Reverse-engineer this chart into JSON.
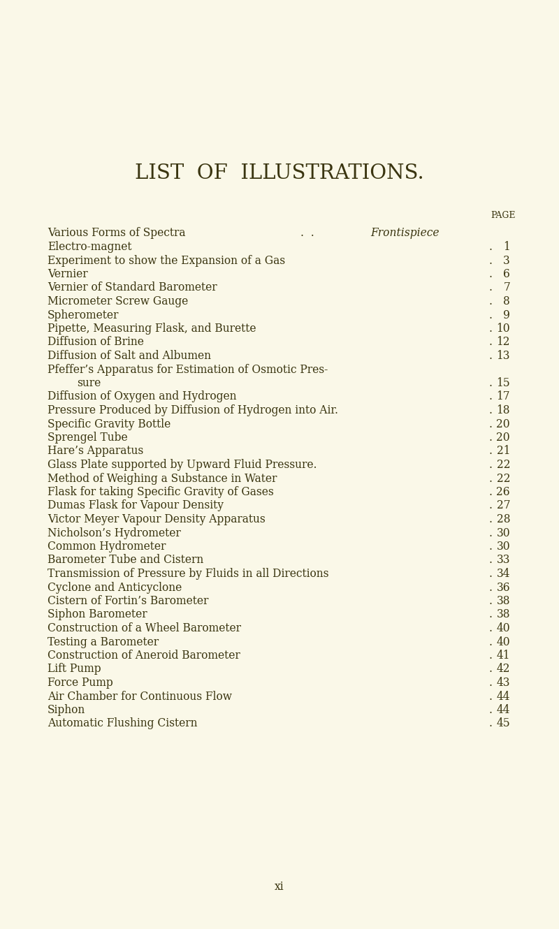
{
  "bg_color": "#faf8e8",
  "title": "LIST  OF  ILLUSTRATIONS.",
  "title_fontsize": 20,
  "text_color": "#3a3510",
  "entries": [
    {
      "text": "Various Forms of Spectra",
      "dots_text": " .  .  ",
      "page": "Frontispiece",
      "page_italic": true,
      "indent": false,
      "has_dots": false
    },
    {
      "text": "Electro-magnet",
      "dots_text": " . . . . . . . .",
      "page": "1",
      "page_italic": false,
      "indent": false,
      "has_dots": true
    },
    {
      "text": "Experiment to show the Expansion of a Gas",
      "dots_text": " . .",
      "page": "3",
      "page_italic": false,
      "indent": false,
      "has_dots": true
    },
    {
      "text": "Vernier",
      "dots_text": " . . . . . . . . .",
      "page": "6",
      "page_italic": false,
      "indent": false,
      "has_dots": true
    },
    {
      "text": "Vernier of Standard Barometer",
      "dots_text": " . . . . .",
      "page": "7",
      "page_italic": false,
      "indent": false,
      "has_dots": true
    },
    {
      "text": "Micrometer Screw Gauge",
      "dots_text": " . . . . . .",
      "page": "8",
      "page_italic": false,
      "indent": false,
      "has_dots": true
    },
    {
      "text": "Spherometer",
      "dots_text": " . . . . . . . .",
      "page": "9",
      "page_italic": false,
      "indent": false,
      "has_dots": true
    },
    {
      "text": "Pipette, Measuring Flask, and Burette",
      "dots_text": " . . .",
      "page": "10",
      "page_italic": false,
      "indent": false,
      "has_dots": true
    },
    {
      "text": "Diffusion of Brine",
      "dots_text": " . . . . . . .",
      "page": "12",
      "page_italic": false,
      "indent": false,
      "has_dots": true
    },
    {
      "text": "Diffusion of Salt and Albumen",
      "dots_text": " . . . . .",
      "page": "13",
      "page_italic": false,
      "indent": false,
      "has_dots": true
    },
    {
      "text": "Pfeffer’s Apparatus for Estimation of Osmotic Pres-",
      "dots_text": "",
      "page": "",
      "page_italic": false,
      "indent": false,
      "has_dots": false
    },
    {
      "text": "sure",
      "dots_text": " . . . . . . . . .",
      "page": "15",
      "page_italic": false,
      "indent": true,
      "has_dots": true
    },
    {
      "text": "Diffusion of Oxygen and Hydrogen",
      "dots_text": " . . . .",
      "page": "17",
      "page_italic": false,
      "indent": false,
      "has_dots": true
    },
    {
      "text": "Pressure Produced by Diffusion of Hydrogen into Air.",
      "dots_text": "",
      "page": "18",
      "page_italic": false,
      "indent": false,
      "has_dots": true
    },
    {
      "text": "Specific Gravity Bottle",
      "dots_text": " . . . . . .",
      "page": "20",
      "page_italic": false,
      "indent": false,
      "has_dots": true
    },
    {
      "text": "Sprengel Tube",
      "dots_text": " . . . . . . . .",
      "page": "20",
      "page_italic": false,
      "indent": false,
      "has_dots": true
    },
    {
      "text": "Hare’s Apparatus",
      "dots_text": " . . . . . . .",
      "page": "21",
      "page_italic": false,
      "indent": false,
      "has_dots": true
    },
    {
      "text": "Glass Plate supported by Upward Fluid Pressure.",
      "dots_text": " .",
      "page": "22",
      "page_italic": false,
      "indent": false,
      "has_dots": true
    },
    {
      "text": "Method of Weighing a Substance in Water",
      "dots_text": " . . .",
      "page": "22",
      "page_italic": false,
      "indent": false,
      "has_dots": true
    },
    {
      "text": "Flask for taking Specific Gravity of Gases",
      "dots_text": " . . .",
      "page": "26",
      "page_italic": false,
      "indent": false,
      "has_dots": true
    },
    {
      "text": "Dumas Flask for Vapour Density",
      "dots_text": " . . . .",
      "page": "27",
      "page_italic": false,
      "indent": false,
      "has_dots": true
    },
    {
      "text": "Victor Meyer Vapour Density Apparatus",
      "dots_text": " . . .",
      "page": "28",
      "page_italic": false,
      "indent": false,
      "has_dots": true
    },
    {
      "text": "Nicholson’s Hydrometer",
      "dots_text": " . . . . . .",
      "page": "30",
      "page_italic": false,
      "indent": false,
      "has_dots": true
    },
    {
      "text": "Common Hydrometer",
      "dots_text": " . . . . . .",
      "page": "30",
      "page_italic": false,
      "indent": false,
      "has_dots": true
    },
    {
      "text": "Barometer Tube and Cistern",
      "dots_text": " . . . . .",
      "page": "33",
      "page_italic": false,
      "indent": false,
      "has_dots": true
    },
    {
      "text": "Transmission of Pressure by Fluids in all Directions",
      "dots_text": " .",
      "page": "34",
      "page_italic": false,
      "indent": false,
      "has_dots": true
    },
    {
      "text": "Cyclone and Anticyclone",
      "dots_text": " . . . . . .",
      "page": "36",
      "page_italic": false,
      "indent": false,
      "has_dots": true
    },
    {
      "text": "Cistern of Fortin’s Barometer",
      "dots_text": " . . . . .",
      "page": "38",
      "page_italic": false,
      "indent": false,
      "has_dots": true
    },
    {
      "text": "Siphon Barometer",
      "dots_text": " . . . . . . .",
      "page": "38",
      "page_italic": false,
      "indent": false,
      "has_dots": true
    },
    {
      "text": "Construction of a Wheel Barometer",
      "dots_text": " . . . .",
      "page": "40",
      "page_italic": false,
      "indent": false,
      "has_dots": true
    },
    {
      "text": "Testing a Barometer",
      "dots_text": " . . . . . . .",
      "page": "40",
      "page_italic": false,
      "indent": false,
      "has_dots": true
    },
    {
      "text": "Construction of Aneroid Barometer",
      "dots_text": " . . . .",
      "page": "41",
      "page_italic": false,
      "indent": false,
      "has_dots": true
    },
    {
      "text": "Lift Pump",
      "dots_text": " . . . . . . . .",
      "page": "42",
      "page_italic": false,
      "indent": false,
      "has_dots": true
    },
    {
      "text": "Force Pump",
      "dots_text": " . . . . . . . .",
      "page": "43",
      "page_italic": false,
      "indent": false,
      "has_dots": true
    },
    {
      "text": "Air Chamber for Continuous Flow",
      "dots_text": " . . . .",
      "page": "44",
      "page_italic": false,
      "indent": false,
      "has_dots": true
    },
    {
      "text": "Siphon",
      "dots_text": " . . . . . . . . .",
      "page": "44",
      "page_italic": false,
      "indent": false,
      "has_dots": true
    },
    {
      "text": "Automatic Flushing Cistern",
      "dots_text": " . . . . .",
      "page": "45",
      "page_italic": false,
      "indent": false,
      "has_dots": true
    }
  ]
}
